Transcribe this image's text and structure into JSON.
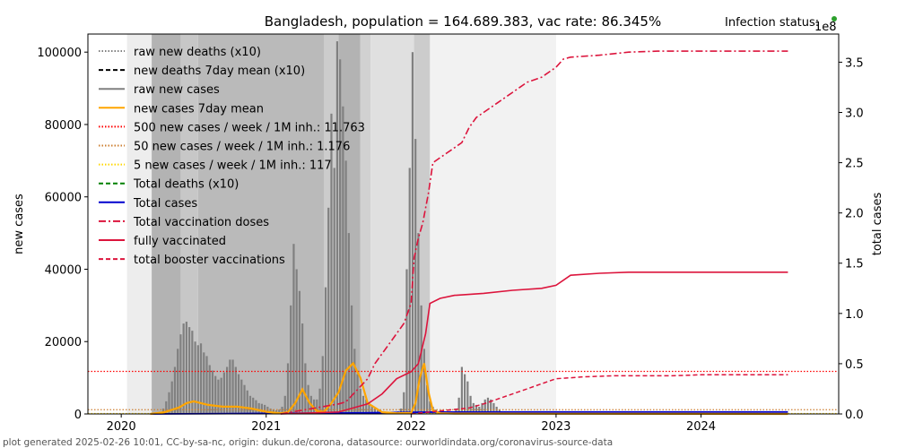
{
  "title": "Bangladesh, population = 164.689.383, vac rate: 86.345%",
  "infection_status_label": "Infection status:",
  "infection_status_color": "#2ca02c",
  "footer": "plot generated 2025-02-26 10:01, CC-by-sa-nc, origin: dukun.de/corona, datasource: ourworldindata.org/coronavirus-source-data",
  "chart_data": {
    "type": "bar",
    "title": "Bangladesh, population = 164.689.383, vac rate: 86.345%",
    "xlabel": "",
    "ylabel": "new cases",
    "y2label": "total cases",
    "y2_offset_label": "1e8",
    "xlim": [
      2019.77,
      2024.95
    ],
    "ylim": [
      0,
      105000
    ],
    "y2lim": [
      0,
      3.78
    ],
    "x_ticks": [
      2020,
      2021,
      2022,
      2023,
      2024
    ],
    "x_tick_labels": [
      "2020",
      "2021",
      "2022",
      "2023",
      "2024"
    ],
    "y_ticks": [
      0,
      20000,
      40000,
      60000,
      80000,
      100000
    ],
    "y_tick_labels": [
      "0",
      "20000",
      "40000",
      "60000",
      "80000",
      "100000"
    ],
    "y2_ticks": [
      0,
      0.5,
      1.0,
      1.5,
      2.0,
      2.5,
      3.0,
      3.5
    ],
    "y2_tick_labels": [
      "0.0",
      "0.5",
      "1.0",
      "1.5",
      "2.0",
      "2.5",
      "3.0",
      "3.5"
    ],
    "grid": false,
    "legend_position": "top-left",
    "legend": [
      {
        "label": "raw new deaths (x10)",
        "color": "#808080",
        "style": "dotted"
      },
      {
        "label": "new deaths 7day mean (x10)",
        "color": "#000000",
        "style": "dashed"
      },
      {
        "label": "raw new cases",
        "color": "#808080",
        "style": "solid"
      },
      {
        "label": "new cases 7day mean",
        "color": "#ffa500",
        "style": "solid"
      },
      {
        "label": "500 new cases / week / 1M inh.: 11.763",
        "color": "#ff0000",
        "style": "dotted"
      },
      {
        "label": "50 new cases / week / 1M inh.: 1.176",
        "color": "#cd7f32",
        "style": "dotted"
      },
      {
        "label": "5 new cases / week / 1M inh.: 117",
        "color": "#ffd700",
        "style": "dotted"
      },
      {
        "label": "Total deaths (x10)",
        "color": "#008000",
        "style": "dashed"
      },
      {
        "label": "Total cases",
        "color": "#0000cd",
        "style": "solid"
      },
      {
        "label": "Total vaccination doses",
        "color": "#dc143c",
        "style": "dashdot"
      },
      {
        "label": "fully vaccinated",
        "color": "#dc143c",
        "style": "solid"
      },
      {
        "label": "total booster vaccinations",
        "color": "#dc143c",
        "style": "dashed"
      }
    ],
    "thresholds": [
      {
        "name": "500-per-week",
        "value": 11763,
        "color": "#ff0000"
      },
      {
        "name": "50-per-week",
        "value": 1176,
        "color": "#cd7f32"
      },
      {
        "name": "5-per-week",
        "value": 117,
        "color": "#ffd700"
      }
    ],
    "shading_bands": [
      {
        "x0": 2020.04,
        "x1": 2020.21,
        "gray": 0.93
      },
      {
        "x0": 2020.21,
        "x1": 2020.41,
        "gray": 0.7
      },
      {
        "x0": 2020.41,
        "x1": 2020.53,
        "gray": 0.78
      },
      {
        "x0": 2020.53,
        "x1": 2021.4,
        "gray": 0.73
      },
      {
        "x0": 2021.4,
        "x1": 2021.5,
        "gray": 0.8
      },
      {
        "x0": 2021.5,
        "x1": 2021.65,
        "gray": 0.7
      },
      {
        "x0": 2021.65,
        "x1": 2021.72,
        "gray": 0.82
      },
      {
        "x0": 2021.72,
        "x1": 2022.02,
        "gray": 0.88
      },
      {
        "x0": 2022.02,
        "x1": 2022.13,
        "gray": 0.8
      },
      {
        "x0": 2022.13,
        "x1": 2023.0,
        "gray": 0.95
      }
    ],
    "raw_new_cases": {
      "x": [
        2020.25,
        2020.27,
        2020.29,
        2020.31,
        2020.33,
        2020.35,
        2020.37,
        2020.39,
        2020.41,
        2020.43,
        2020.45,
        2020.47,
        2020.49,
        2020.51,
        2020.53,
        2020.55,
        2020.57,
        2020.59,
        2020.61,
        2020.63,
        2020.65,
        2020.67,
        2020.69,
        2020.71,
        2020.73,
        2020.75,
        2020.77,
        2020.79,
        2020.81,
        2020.83,
        2020.85,
        2020.87,
        2020.89,
        2020.91,
        2020.93,
        2020.95,
        2020.97,
        2020.99,
        2021.01,
        2021.03,
        2021.05,
        2021.07,
        2021.09,
        2021.11,
        2021.13,
        2021.15,
        2021.17,
        2021.19,
        2021.21,
        2021.23,
        2021.25,
        2021.27,
        2021.29,
        2021.31,
        2021.33,
        2021.35,
        2021.37,
        2021.39,
        2021.41,
        2021.43,
        2021.45,
        2021.47,
        2021.49,
        2021.51,
        2021.53,
        2021.55,
        2021.57,
        2021.59,
        2021.61,
        2021.63,
        2021.65,
        2021.67,
        2021.69,
        2021.71,
        2021.73,
        2021.75,
        2021.77,
        2021.79,
        2021.81,
        2021.83,
        2021.85,
        2021.87,
        2021.89,
        2021.91,
        2021.93,
        2021.95,
        2021.97,
        2021.99,
        2022.01,
        2022.03,
        2022.05,
        2022.07,
        2022.09,
        2022.11,
        2022.13,
        2022.15,
        2022.17,
        2022.19,
        2022.21,
        2022.23,
        2022.25,
        2022.27,
        2022.29,
        2022.31,
        2022.33,
        2022.35,
        2022.37,
        2022.39,
        2022.41,
        2022.43,
        2022.45,
        2022.47,
        2022.49,
        2022.51,
        2022.53,
        2022.55,
        2022.57,
        2022.59,
        2022.61,
        2022.63,
        2022.65,
        2022.67,
        2022.69,
        2022.71,
        2022.73,
        2022.75,
        2022.77,
        2022.79,
        2022.81,
        2022.83
      ],
      "values": [
        200,
        600,
        1500,
        3500,
        6000,
        9000,
        13000,
        18000,
        22000,
        25000,
        25500,
        24000,
        23000,
        20000,
        19000,
        19500,
        17000,
        16000,
        13500,
        12000,
        10500,
        9500,
        10000,
        11500,
        13000,
        15000,
        15000,
        13000,
        11000,
        9500,
        8000,
        6500,
        5000,
        4500,
        3800,
        3000,
        2800,
        2500,
        2000,
        1500,
        1200,
        1000,
        1200,
        2000,
        5000,
        14000,
        30000,
        47000,
        40000,
        34000,
        25000,
        14000,
        8000,
        5000,
        4000,
        4000,
        7000,
        16000,
        35000,
        57000,
        83000,
        68000,
        103000,
        98000,
        85000,
        70000,
        50000,
        30000,
        18000,
        11000,
        7000,
        5000,
        4000,
        3000,
        2200,
        1500,
        1000,
        800,
        600,
        500,
        400,
        400,
        500,
        700,
        1500,
        6000,
        40000,
        68000,
        100000,
        76000,
        50000,
        30000,
        18000,
        8000,
        3500,
        2000,
        1200,
        800,
        600,
        500,
        400,
        400,
        500,
        1500,
        4500,
        13000,
        11000,
        9000,
        5000,
        3000,
        2500,
        2000,
        3000,
        4000,
        4500,
        4000,
        3000,
        2000,
        1200,
        700,
        400,
        300,
        200,
        200,
        150,
        150,
        100,
        100,
        100,
        100
      ],
      "color": "#808080"
    },
    "new_cases_7day_mean": {
      "x": [
        2020.2,
        2020.3,
        2020.4,
        2020.45,
        2020.5,
        2020.55,
        2020.6,
        2020.7,
        2020.8,
        2020.9,
        2021.0,
        2021.1,
        2021.15,
        2021.2,
        2021.25,
        2021.3,
        2021.35,
        2021.4,
        2021.45,
        2021.5,
        2021.55,
        2021.6,
        2021.65,
        2021.7,
        2021.8,
        2021.9,
        2022.0,
        2022.03,
        2022.06,
        2022.09,
        2022.12,
        2022.15,
        2022.2,
        2022.3,
        2022.5,
        2023.0,
        2024.6
      ],
      "values": [
        0,
        500,
        1800,
        3000,
        3500,
        3000,
        2500,
        2000,
        2000,
        1500,
        600,
        200,
        500,
        3000,
        6800,
        3000,
        800,
        600,
        3000,
        6000,
        12000,
        14000,
        10000,
        3000,
        500,
        200,
        300,
        3000,
        10000,
        14000,
        6000,
        1000,
        200,
        100,
        100,
        50,
        0
      ],
      "color": "#ffa500"
    },
    "total_cases": {
      "x": [
        2020.2,
        2021.0,
        2021.5,
        2022.0,
        2022.2,
        2023.0,
        2024.6
      ],
      "values_1e8": [
        0,
        0.005,
        0.009,
        0.016,
        0.019,
        0.02,
        0.02
      ],
      "color": "#0000cd"
    },
    "total_vaccination_doses": {
      "x": [
        2021.1,
        2021.3,
        2021.5,
        2021.55,
        2021.7,
        2021.75,
        2021.8,
        2021.85,
        2021.9,
        2021.95,
        2022.0,
        2022.02,
        2022.05,
        2022.08,
        2022.12,
        2022.15,
        2022.2,
        2022.25,
        2022.3,
        2022.35,
        2022.4,
        2022.45,
        2022.5,
        2022.6,
        2022.7,
        2022.8,
        2022.9,
        2023.0,
        2023.05,
        2023.1,
        2023.3,
        2023.5,
        2023.7,
        2024.0,
        2024.6
      ],
      "values_1e8": [
        0,
        0.05,
        0.1,
        0.12,
        0.35,
        0.5,
        0.6,
        0.7,
        0.8,
        0.9,
        1.1,
        1.55,
        1.75,
        1.9,
        2.2,
        2.5,
        2.55,
        2.6,
        2.65,
        2.7,
        2.85,
        2.95,
        3.0,
        3.1,
        3.2,
        3.3,
        3.35,
        3.45,
        3.53,
        3.55,
        3.57,
        3.6,
        3.61,
        3.61,
        3.61
      ],
      "color": "#dc143c"
    },
    "fully_vaccinated": {
      "x": [
        2021.1,
        2021.5,
        2021.7,
        2021.8,
        2021.9,
        2022.0,
        2022.05,
        2022.1,
        2022.13,
        2022.2,
        2022.3,
        2022.5,
        2022.7,
        2022.9,
        2023.0,
        2023.1,
        2023.3,
        2023.5,
        2024.0,
        2024.6
      ],
      "values_1e8": [
        0,
        0.02,
        0.1,
        0.2,
        0.35,
        0.42,
        0.5,
        0.8,
        1.1,
        1.15,
        1.18,
        1.2,
        1.23,
        1.25,
        1.28,
        1.38,
        1.4,
        1.41,
        1.41,
        1.41
      ],
      "color": "#dc143c"
    },
    "total_booster_vaccinations": {
      "x": [
        2022.0,
        2022.2,
        2022.4,
        2022.5,
        2022.6,
        2022.8,
        2022.9,
        2023.0,
        2023.2,
        2023.4,
        2023.6,
        2023.8,
        2024.0,
        2024.2,
        2024.4,
        2024.6
      ],
      "values_1e8": [
        0,
        0.03,
        0.06,
        0.1,
        0.15,
        0.25,
        0.3,
        0.35,
        0.37,
        0.38,
        0.38,
        0.38,
        0.39,
        0.39,
        0.39,
        0.39
      ],
      "color": "#dc143c"
    }
  }
}
